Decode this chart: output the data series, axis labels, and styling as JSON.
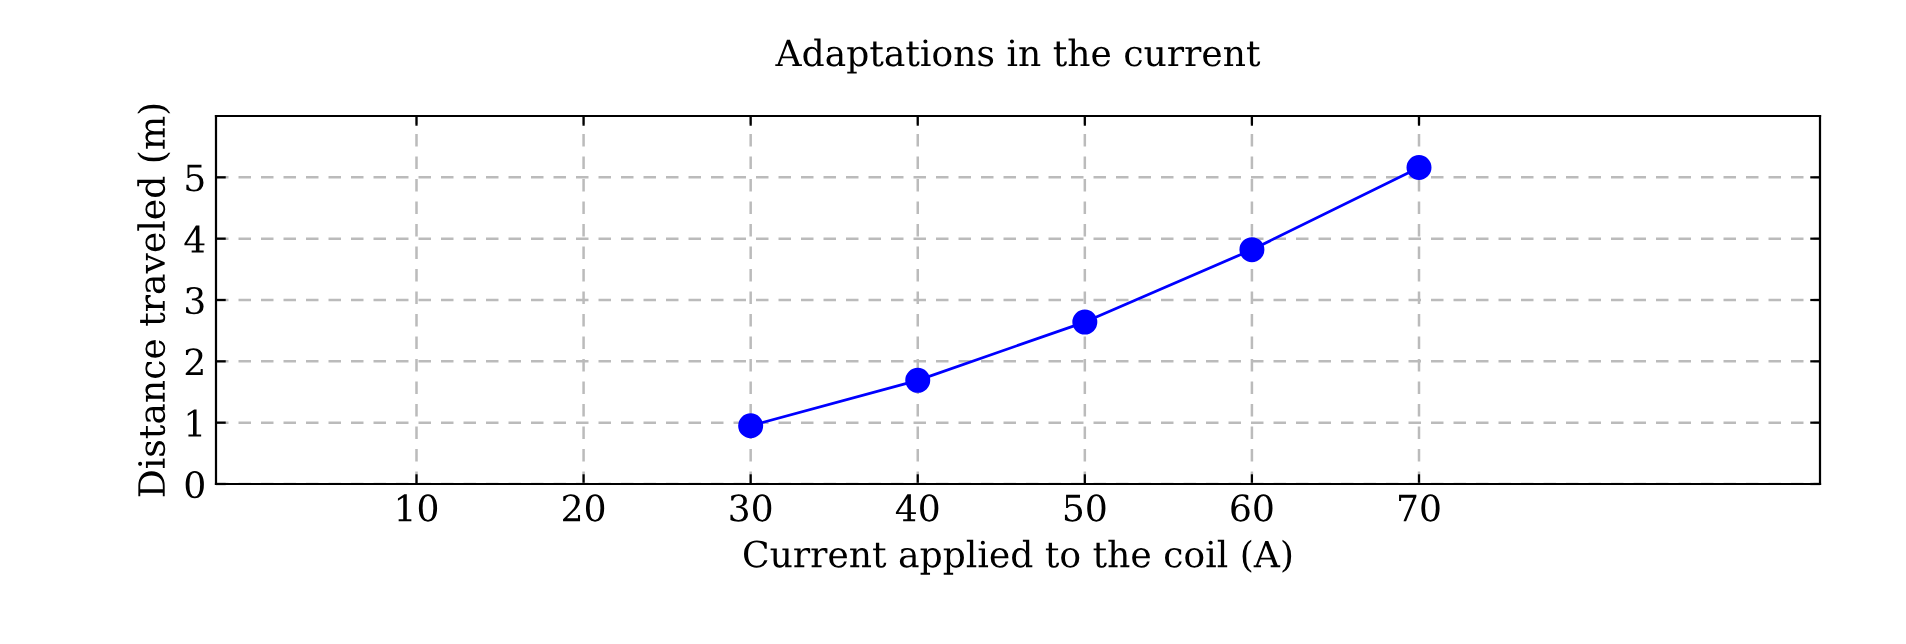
{
  "chart_data": {
    "type": "line",
    "title": "Adaptations in the current",
    "xlabel": "Current applied to the coil (A)",
    "ylabel": "Distance traveled (m)",
    "x": [
      30,
      40,
      50,
      60,
      70
    ],
    "series": [
      {
        "color": "#0000ff",
        "values": [
          0.95,
          1.69,
          2.64,
          3.82,
          5.16
        ]
      }
    ],
    "xlim": [
      -2,
      94
    ],
    "ylim": [
      0,
      6
    ],
    "xticks": [
      10,
      20,
      30,
      40,
      50,
      60,
      70
    ],
    "yticks": [
      0,
      1,
      2,
      3,
      4,
      5
    ],
    "grid": true,
    "marker": "circle",
    "line_style": "solid"
  }
}
